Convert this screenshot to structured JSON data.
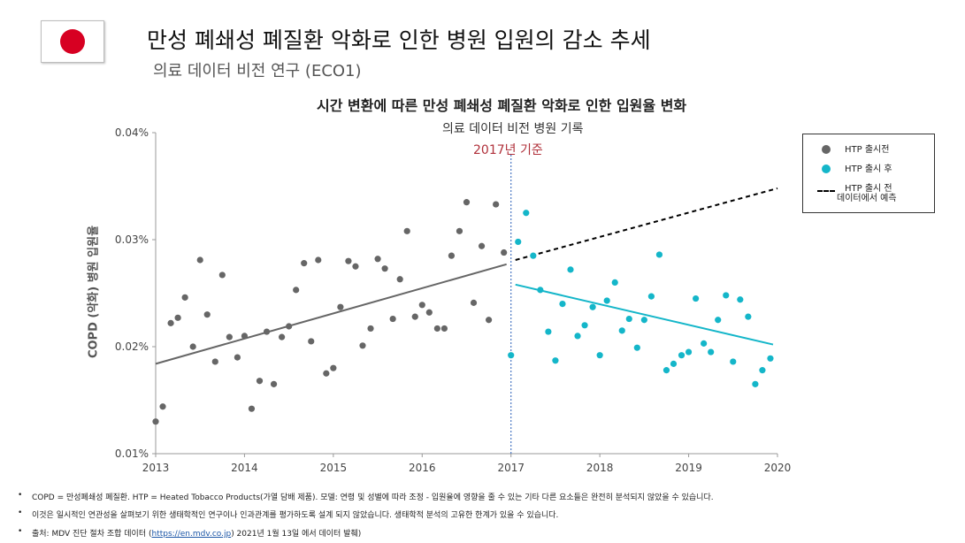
{
  "header": {
    "title": "만성 폐쇄성 폐질환 악화로 인한 병원 입원의 감소 추세",
    "subtitle": "의료 데이터 비전 연구 (ECO1)"
  },
  "chart_data": {
    "type": "scatter",
    "title": "시간 변환에 따른 만성 폐쇄성 폐질환 악화로 인한 입원율 변화",
    "subtitle": "의료 데이터 비전 병원 기록",
    "ylabel": "COPD (악화) 병원 입원율",
    "xlabel": "",
    "xlim": [
      2013,
      2020
    ],
    "ylim": [
      0.01,
      0.04
    ],
    "x_ticks": [
      "2013",
      "2014",
      "2015",
      "2016",
      "2017",
      "2018",
      "2019",
      "2020"
    ],
    "y_ticks": [
      "0.01%",
      "0.02%",
      "0.03%",
      "0.04%"
    ],
    "reference_line": {
      "x": 2017,
      "label": "2017년 기준",
      "color": "#b0303a"
    },
    "series": [
      {
        "name": "HTP 출시전",
        "color": "#666666",
        "points": [
          [
            2013.0,
            0.013
          ],
          [
            2013.08,
            0.0144
          ],
          [
            2013.17,
            0.0222
          ],
          [
            2013.25,
            0.0227
          ],
          [
            2013.33,
            0.0246
          ],
          [
            2013.42,
            0.02
          ],
          [
            2013.5,
            0.0281
          ],
          [
            2013.58,
            0.023
          ],
          [
            2013.67,
            0.0186
          ],
          [
            2013.75,
            0.0267
          ],
          [
            2013.83,
            0.0209
          ],
          [
            2013.92,
            0.019
          ],
          [
            2014.0,
            0.021
          ],
          [
            2014.08,
            0.0142
          ],
          [
            2014.17,
            0.0168
          ],
          [
            2014.25,
            0.0214
          ],
          [
            2014.33,
            0.0165
          ],
          [
            2014.42,
            0.0209
          ],
          [
            2014.5,
            0.0219
          ],
          [
            2014.58,
            0.0253
          ],
          [
            2014.67,
            0.0278
          ],
          [
            2014.75,
            0.0205
          ],
          [
            2014.83,
            0.0281
          ],
          [
            2014.92,
            0.0175
          ],
          [
            2015.0,
            0.018
          ],
          [
            2015.08,
            0.0237
          ],
          [
            2015.17,
            0.028
          ],
          [
            2015.25,
            0.0275
          ],
          [
            2015.33,
            0.0201
          ],
          [
            2015.42,
            0.0217
          ],
          [
            2015.5,
            0.0282
          ],
          [
            2015.58,
            0.0273
          ],
          [
            2015.67,
            0.0226
          ],
          [
            2015.75,
            0.0263
          ],
          [
            2015.83,
            0.0308
          ],
          [
            2015.92,
            0.0228
          ],
          [
            2016.0,
            0.0239
          ],
          [
            2016.08,
            0.0232
          ],
          [
            2016.17,
            0.0217
          ],
          [
            2016.25,
            0.0217
          ],
          [
            2016.33,
            0.0285
          ],
          [
            2016.42,
            0.0308
          ],
          [
            2016.5,
            0.0335
          ],
          [
            2016.58,
            0.0241
          ],
          [
            2016.67,
            0.0294
          ],
          [
            2016.75,
            0.0225
          ],
          [
            2016.83,
            0.0333
          ],
          [
            2016.92,
            0.0288
          ]
        ],
        "trend": [
          [
            2013.0,
            0.0184
          ],
          [
            2016.95,
            0.0277
          ]
        ]
      },
      {
        "name": "HTP 출시 후",
        "color": "#14b6c9",
        "points": [
          [
            2017.0,
            0.0192
          ],
          [
            2017.08,
            0.0298
          ],
          [
            2017.17,
            0.0325
          ],
          [
            2017.25,
            0.0285
          ],
          [
            2017.33,
            0.0253
          ],
          [
            2017.42,
            0.0214
          ],
          [
            2017.5,
            0.0187
          ],
          [
            2017.58,
            0.024
          ],
          [
            2017.67,
            0.0272
          ],
          [
            2017.75,
            0.021
          ],
          [
            2017.83,
            0.022
          ],
          [
            2017.92,
            0.0237
          ],
          [
            2018.0,
            0.0192
          ],
          [
            2018.08,
            0.0243
          ],
          [
            2018.17,
            0.026
          ],
          [
            2018.25,
            0.0215
          ],
          [
            2018.33,
            0.0226
          ],
          [
            2018.42,
            0.0199
          ],
          [
            2018.5,
            0.0225
          ],
          [
            2018.58,
            0.0247
          ],
          [
            2018.67,
            0.0286
          ],
          [
            2018.75,
            0.0178
          ],
          [
            2018.83,
            0.0184
          ],
          [
            2018.92,
            0.0192
          ],
          [
            2019.0,
            0.0195
          ],
          [
            2019.08,
            0.0245
          ],
          [
            2019.17,
            0.0203
          ],
          [
            2019.25,
            0.0195
          ],
          [
            2019.33,
            0.0225
          ],
          [
            2019.42,
            0.0248
          ],
          [
            2019.5,
            0.0186
          ],
          [
            2019.58,
            0.0244
          ],
          [
            2019.67,
            0.0228
          ],
          [
            2019.75,
            0.0165
          ],
          [
            2019.83,
            0.0178
          ],
          [
            2019.92,
            0.0189
          ]
        ],
        "trend": [
          [
            2017.05,
            0.0258
          ],
          [
            2019.95,
            0.0202
          ]
        ]
      },
      {
        "name": "HTP 출시 전 데이터에서 예측",
        "color": "#000000",
        "style": "dashed",
        "trend": [
          [
            2017.05,
            0.0281
          ],
          [
            2020.0,
            0.0348
          ]
        ]
      }
    ],
    "legend": "top-right",
    "grid": false
  },
  "legend_items": [
    {
      "label": "HTP 출시전",
      "kind": "dot",
      "color": "#666666"
    },
    {
      "label": "HTP 출시 후",
      "kind": "dot",
      "color": "#14b6c9"
    },
    {
      "label_line1": "HTP 출시 전",
      "label_line2": "데이터에서 예측",
      "kind": "dash",
      "color": "#000000"
    }
  ],
  "footnotes": {
    "note1": "COPD = 만성폐쇄성 폐질환. HTP = Heated Tobacco Products(가열 담배 제품). 모델: 연령 및 성별에 따라 조정 - 입원율에 영향을 줄 수 있는 기타 다른 요소들은 완전히 분석되지 않았을 수 있습니다.",
    "note2": "이것은 일시적인 연관성을 살펴보기 위한 생태학적인 연구이나 인과관계를 평가하도록 설계 되지 않았습니다. 생태학적 분석의 고유한 한계가 있을 수 있습니다.",
    "note3_prefix": "출처: MDV 진단 절차 조합 데이터 (",
    "note3_link": "https://en.mdv.co.jp",
    "note3_suffix": ") 2021년 1월 13일 에서 데이터 발췌)"
  }
}
